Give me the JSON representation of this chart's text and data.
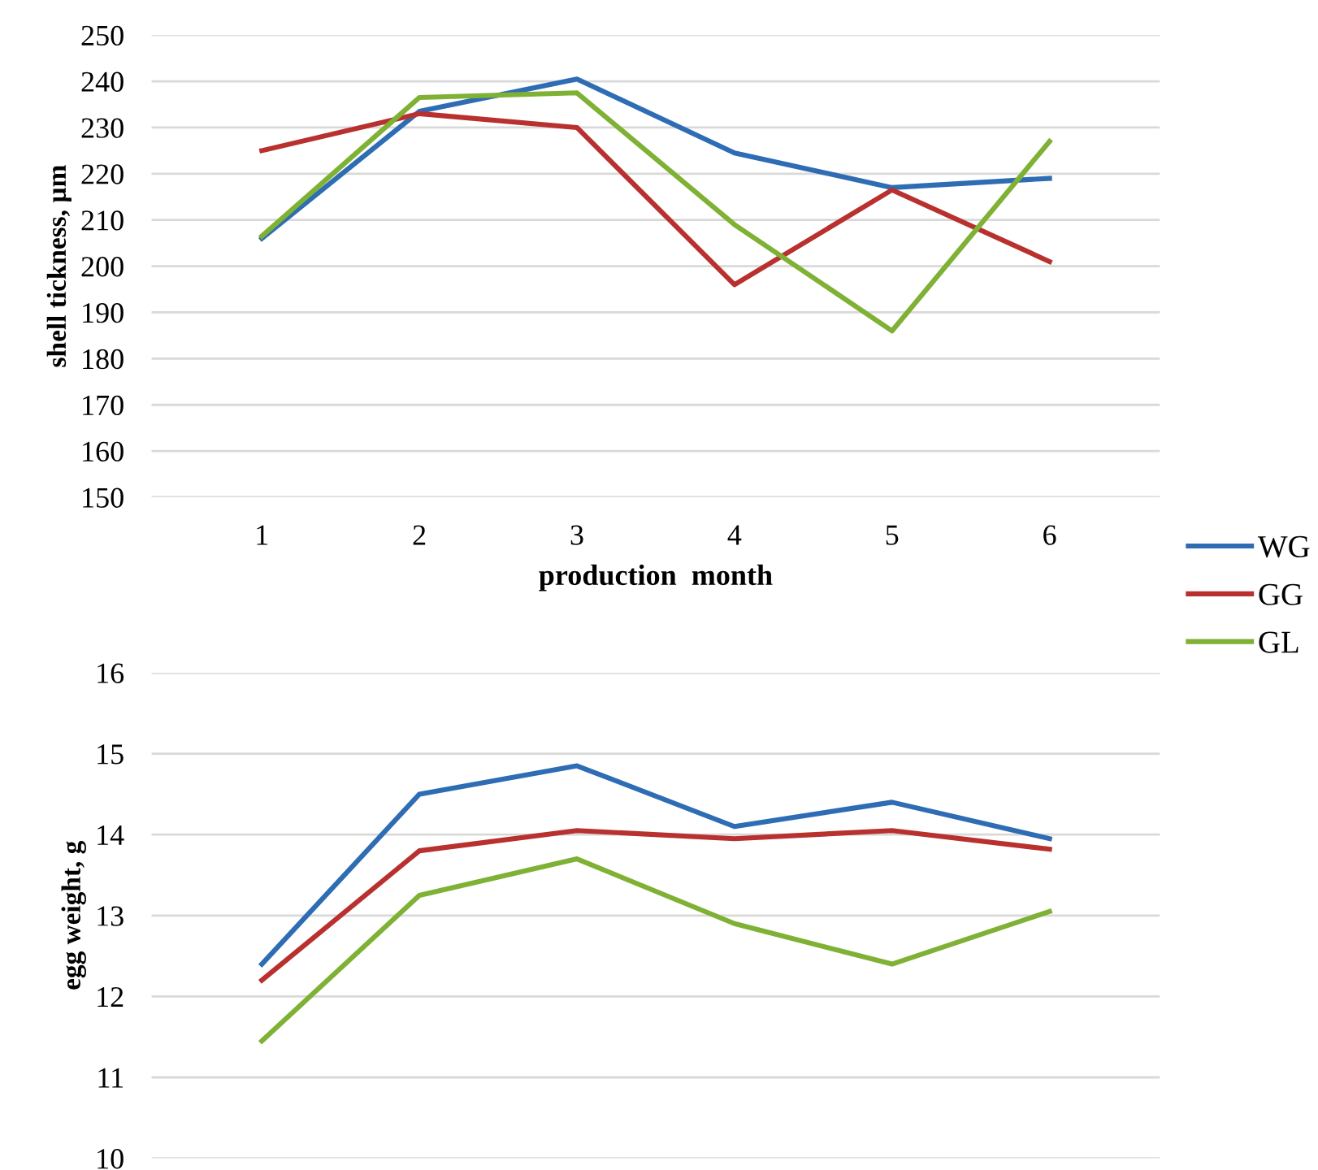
{
  "chart_data": [
    {
      "type": "line",
      "categories": [
        "1",
        "2",
        "3",
        "4",
        "5",
        "6"
      ],
      "xlabel": "production  month",
      "ylabel": "shell tickness, µm",
      "ylim": [
        150,
        250
      ],
      "yticks": [
        150,
        160,
        170,
        180,
        190,
        200,
        210,
        220,
        230,
        240,
        250
      ],
      "grid": "y",
      "legend": "bottom right",
      "series": [
        {
          "name": "WG",
          "color": "#2e6db4",
          "values": [
            206,
            233.5,
            240.5,
            224.5,
            217,
            219
          ]
        },
        {
          "name": "GG",
          "color": "#b8312f",
          "values": [
            225,
            233,
            230,
            196,
            216.5,
            201
          ]
        },
        {
          "name": "GL",
          "color": "#7fb135",
          "values": [
            206.5,
            236.5,
            237.5,
            209,
            186,
            227
          ]
        }
      ]
    },
    {
      "type": "line",
      "categories": [
        null,
        null,
        null,
        null,
        null,
        null
      ],
      "ylabel": "egg weight, g",
      "ylim": [
        10,
        16
      ],
      "yticks": [
        10,
        11,
        12,
        13,
        14,
        15,
        16
      ],
      "grid": "y",
      "tick_labels": "y",
      "series": [
        {
          "color": "#2e6db4",
          "values": [
            12.4,
            14.5,
            14.85,
            14.1,
            14.4,
            13.95
          ]
        },
        {
          "color": "#b8312f",
          "values": [
            12.2,
            13.8,
            14.05,
            13.95,
            14.05,
            13.82
          ]
        },
        {
          "color": "#7fb135",
          "values": [
            11.45,
            13.25,
            13.7,
            12.9,
            12.4,
            13.05
          ]
        }
      ]
    }
  ]
}
